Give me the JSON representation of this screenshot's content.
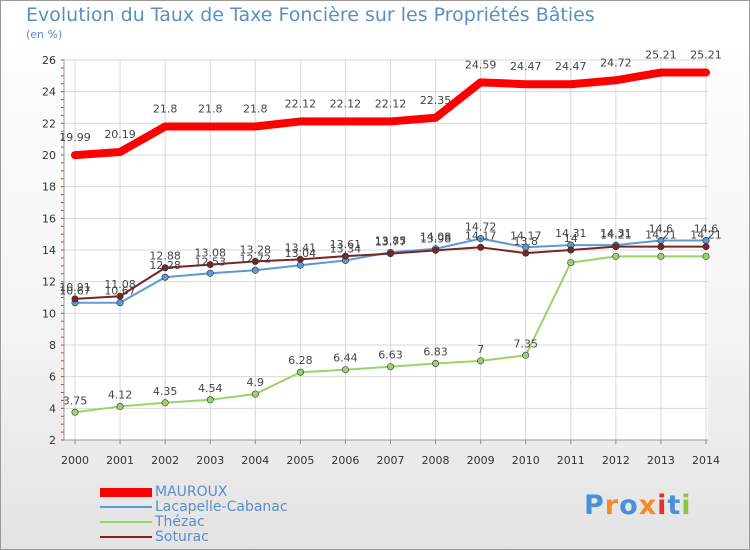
{
  "title": "Evolution du Taux de Taxe Foncière sur les Propriétés Bâties",
  "unit_label": "(en %)",
  "logo": {
    "text": "Proxiti",
    "colors": [
      "#4a90d9",
      "#f28c28",
      "#4a90d9",
      "#f28c28",
      "#e0332c",
      "#4a90d9",
      "#8cc63f"
    ]
  },
  "chart_data": {
    "type": "line",
    "title": "Evolution du Taux de Taxe Foncière sur les Propriétés Bâties",
    "ylabel": "(en %)",
    "xlabel": "",
    "x": [
      "2000",
      "2001",
      "2002",
      "2003",
      "2004",
      "2005",
      "2006",
      "2007",
      "2008",
      "2009",
      "2010",
      "2011",
      "2012",
      "2013",
      "2014"
    ],
    "ylim": [
      2,
      26
    ],
    "yticks": [
      2,
      4,
      6,
      8,
      10,
      12,
      14,
      16,
      18,
      20,
      22,
      24,
      26
    ],
    "grid": true,
    "legend_position": "bottom-left",
    "series": [
      {
        "name": "MAUROUX",
        "color": "#ff0000",
        "width": 8,
        "markers": false,
        "values": [
          19.99,
          20.19,
          21.8,
          21.8,
          21.8,
          22.12,
          22.12,
          22.12,
          22.35,
          24.59,
          24.47,
          24.47,
          24.72,
          25.21,
          25.21
        ],
        "labels": [
          "19.99",
          "20.19",
          "21.8",
          "21.8",
          "21.8",
          "22.12",
          "22.12",
          "22.12",
          "22.35",
          "24.59",
          "24.47",
          "24.47",
          "24.72",
          "25.21",
          "25.21"
        ]
      },
      {
        "name": "Lacapelle-Cabanac",
        "color": "#5b9bd5",
        "width": 2,
        "markers": true,
        "values": [
          10.67,
          10.67,
          12.28,
          12.53,
          12.72,
          13.04,
          13.34,
          13.85,
          14.08,
          14.72,
          14.17,
          14.31,
          14.31,
          14.6,
          14.6
        ],
        "labels": [
          "10.67",
          "10.67",
          "12.28",
          "12.53",
          "12.72",
          "13.04",
          "13.34",
          "13.85",
          "14.08",
          "14.72",
          "14.17",
          "14.31",
          "14.31",
          "14.6",
          "14.6"
        ]
      },
      {
        "name": "Thézac",
        "color": "#99d36a",
        "width": 2,
        "markers": true,
        "values": [
          3.75,
          4.12,
          4.35,
          4.54,
          4.9,
          6.28,
          6.44,
          6.63,
          6.83,
          7,
          7.35,
          13.2,
          13.6,
          13.6,
          13.6
        ],
        "labels": [
          "3.75",
          "4.12",
          "4.35",
          "4.54",
          "4.9",
          "6.28",
          "6.44",
          "6.63",
          "6.83",
          "7",
          "7.35",
          "",
          "",
          "",
          ""
        ]
      },
      {
        "name": "Soturac",
        "color": "#7a2424",
        "width": 2,
        "markers": true,
        "values": [
          10.91,
          11.08,
          12.88,
          13.08,
          13.28,
          13.41,
          13.61,
          13.77,
          13.98,
          14.17,
          13.8,
          14,
          14.21,
          14.21,
          14.21
        ],
        "labels": [
          "10.91",
          "11.08",
          "12.88",
          "13.08",
          "13.28",
          "13.41",
          "13.61",
          "13.77",
          "13.98",
          "14.17",
          "13.8",
          "14",
          "14.21",
          "14.21",
          "14.21"
        ]
      }
    ]
  }
}
